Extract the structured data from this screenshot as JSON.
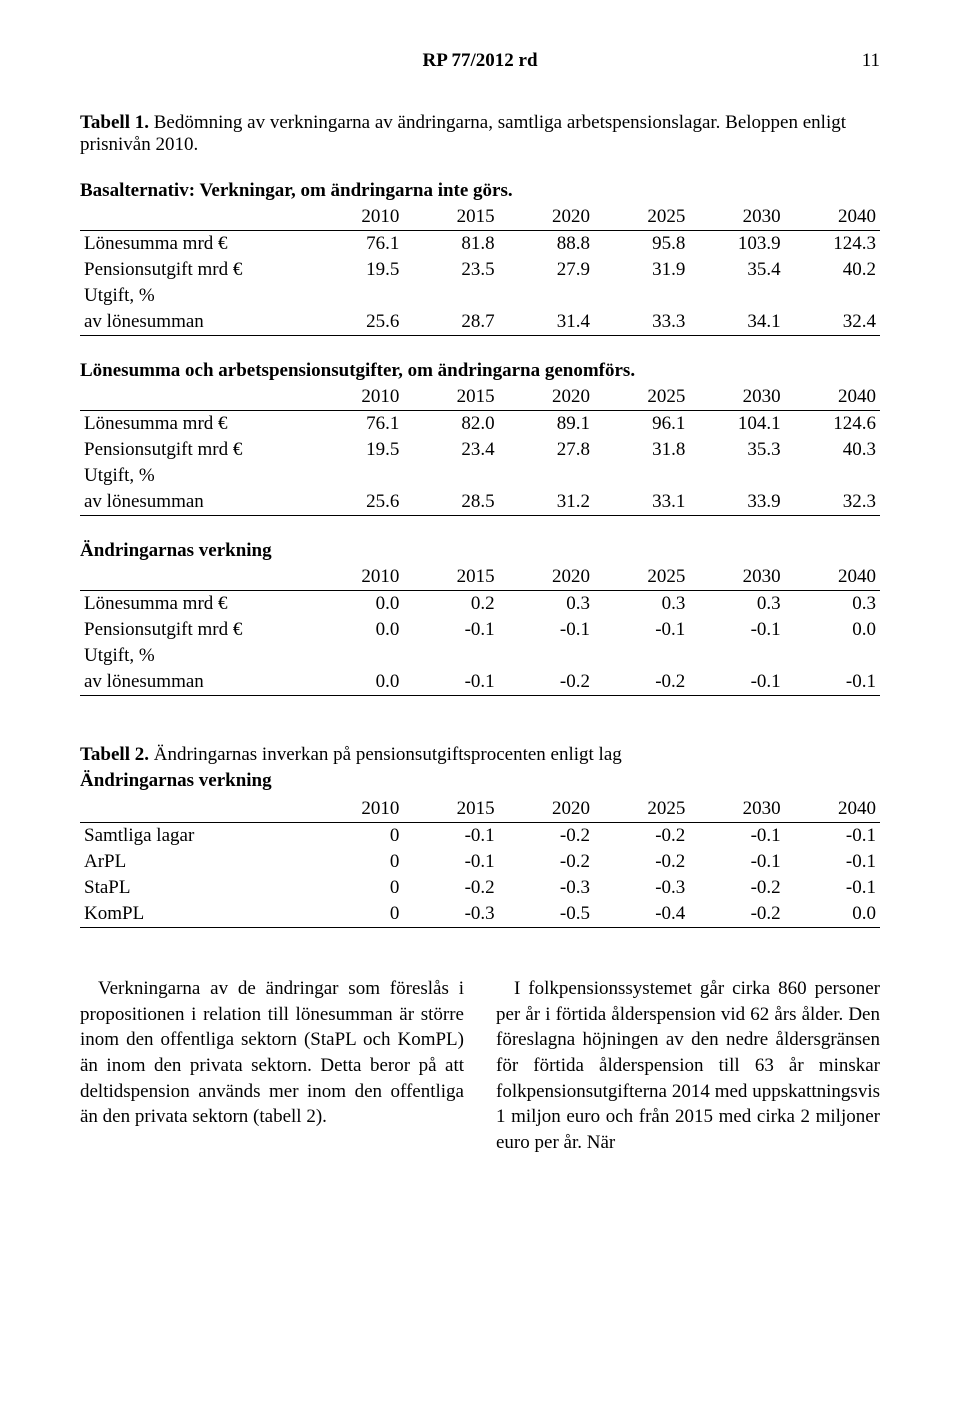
{
  "header": {
    "title": "RP 77/2012 rd",
    "page_number": "11"
  },
  "table1": {
    "caption_prefix": "Tabell 1.",
    "caption_rest": " Bedömning av verkningarna av ändringarna, samtliga arbetspensionslagar. Beloppen enligt prisnivån 2010.",
    "years": [
      "2010",
      "2015",
      "2020",
      "2025",
      "2030",
      "2040"
    ],
    "section_a": {
      "title": "Basalternativ: Verkningar, om ändringarna inte görs.",
      "rows": [
        {
          "label": "Lönesumma mrd €",
          "vals": [
            "76.1",
            "81.8",
            "88.8",
            "95.8",
            "103.9",
            "124.3"
          ]
        },
        {
          "label": "Pensionsutgift mrd €",
          "vals": [
            "19.5",
            "23.5",
            "27.9",
            "31.9",
            "35.4",
            "40.2"
          ]
        },
        {
          "label": "Utgift, %",
          "vals": [
            "",
            "",
            "",
            "",
            "",
            ""
          ]
        },
        {
          "label": "av lönesumman",
          "vals": [
            "25.6",
            "28.7",
            "31.4",
            "33.3",
            "34.1",
            "32.4"
          ]
        }
      ]
    },
    "section_b": {
      "title": "Lönesumma och arbetspensionsutgifter, om ändringarna genomförs.",
      "rows": [
        {
          "label": "Lönesumma mrd €",
          "vals": [
            "76.1",
            "82.0",
            "89.1",
            "96.1",
            "104.1",
            "124.6"
          ]
        },
        {
          "label": "Pensionsutgift mrd €",
          "vals": [
            "19.5",
            "23.4",
            "27.8",
            "31.8",
            "35.3",
            "40.3"
          ]
        },
        {
          "label": "Utgift, %",
          "vals": [
            "",
            "",
            "",
            "",
            "",
            ""
          ]
        },
        {
          "label": "av lönesumman",
          "vals": [
            "25.6",
            "28.5",
            "31.2",
            "33.1",
            "33.9",
            "32.3"
          ]
        }
      ]
    },
    "section_c": {
      "title": "Ändringarnas verkning",
      "rows": [
        {
          "label": "Lönesumma mrd €",
          "vals": [
            "0.0",
            "0.2",
            "0.3",
            "0.3",
            "0.3",
            "0.3"
          ]
        },
        {
          "label": "Pensionsutgift mrd €",
          "vals": [
            "0.0",
            "-0.1",
            "-0.1",
            "-0.1",
            "-0.1",
            "0.0"
          ]
        },
        {
          "label": "Utgift, %",
          "vals": [
            "",
            "",
            "",
            "",
            "",
            ""
          ]
        },
        {
          "label": "av lönesumman",
          "vals": [
            "0.0",
            "-0.1",
            "-0.2",
            "-0.2",
            "-0.1",
            "-0.1"
          ]
        }
      ]
    }
  },
  "table2": {
    "caption_prefix": "Tabell 2.",
    "caption_rest": " Ändringarnas inverkan på pensionsutgiftsprocenten enligt lag",
    "sub": "Ändringarnas verkning",
    "years": [
      "2010",
      "2015",
      "2020",
      "2025",
      "2030",
      "2040"
    ],
    "rows": [
      {
        "label": "Samtliga lagar",
        "vals": [
          "0",
          "-0.1",
          "-0.2",
          "-0.2",
          "-0.1",
          "-0.1"
        ]
      },
      {
        "label": "ArPL",
        "vals": [
          "0",
          "-0.1",
          "-0.2",
          "-0.2",
          "-0.1",
          "-0.1"
        ]
      },
      {
        "label": "StaPL",
        "vals": [
          "0",
          "-0.2",
          "-0.3",
          "-0.3",
          "-0.2",
          "-0.1"
        ]
      },
      {
        "label": "KomPL",
        "vals": [
          "0",
          "-0.3",
          "-0.5",
          "-0.4",
          "-0.2",
          "0.0"
        ]
      }
    ]
  },
  "body": {
    "left": "Verkningarna av de ändringar som föreslås i propositionen i relation till lönesumman är större inom den offentliga sektorn (StaPL och KomPL) än inom den privata sektorn. Detta beror på att deltidspension används mer inom den offentliga än den privata sektorn (tabell 2).",
    "right": "I folkpensionssystemet går cirka 860 personer per år i förtida ålderspension vid 62 års ålder. Den föreslagna höjningen av den nedre åldersgränsen för förtida ålderspension till 63 år minskar folkpensionsutgifterna 2014 med uppskattningsvis 1 miljon euro och från 2015 med cirka 2 miljoner euro per år. När"
  }
}
